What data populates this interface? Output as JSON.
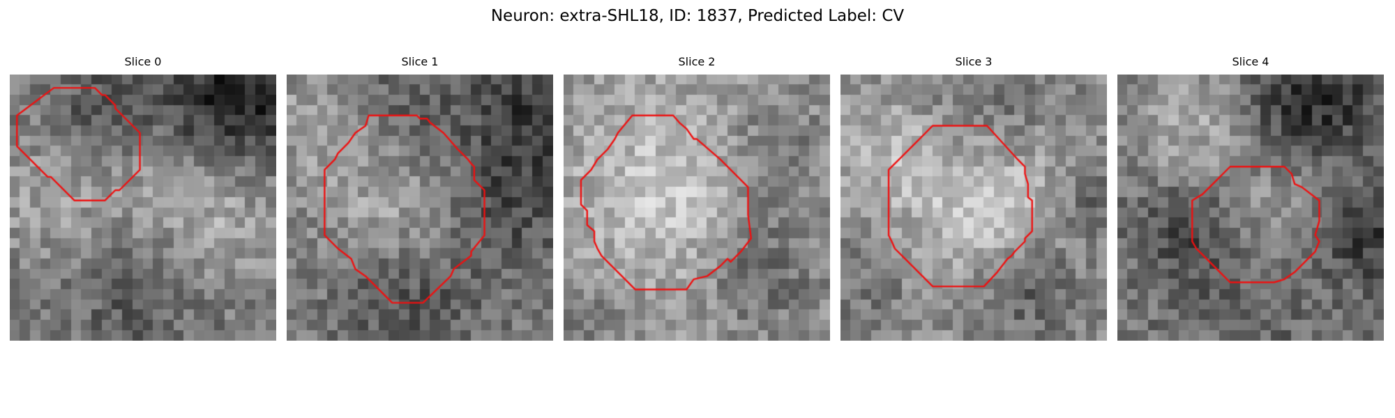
{
  "figure": {
    "title": "Neuron: extra-SHL18, ID: 1837, Predicted Label: CV"
  },
  "panels": [
    {
      "title": "Slice 0",
      "contour_color": "#ee1111",
      "contour": [
        [
          4.3,
          1.3
        ],
        [
          8.3,
          1.3
        ],
        [
          9.0,
          2.0
        ],
        [
          9.3,
          2.0
        ],
        [
          10.3,
          3.0
        ],
        [
          10.3,
          3.3
        ],
        [
          12.7,
          5.7
        ],
        [
          12.7,
          9.3
        ],
        [
          10.7,
          11.3
        ],
        [
          10.3,
          11.3
        ],
        [
          9.3,
          12.3
        ],
        [
          6.3,
          12.3
        ],
        [
          4.0,
          10.0
        ],
        [
          3.7,
          10.0
        ],
        [
          0.7,
          7.0
        ],
        [
          0.7,
          4.0
        ]
      ]
    },
    {
      "title": "Slice 1",
      "contour_color": "#ee1111",
      "contour": [
        [
          8.0,
          4.0
        ],
        [
          12.7,
          4.0
        ],
        [
          13.0,
          4.3
        ],
        [
          13.7,
          4.3
        ],
        [
          14.0,
          4.7
        ],
        [
          15.3,
          5.7
        ],
        [
          16.7,
          7.3
        ],
        [
          17.7,
          8.3
        ],
        [
          18.0,
          8.7
        ],
        [
          18.3,
          9.0
        ],
        [
          18.3,
          10.3
        ],
        [
          19.3,
          11.3
        ],
        [
          19.3,
          15.7
        ],
        [
          18.0,
          17.3
        ],
        [
          18.0,
          17.7
        ],
        [
          16.3,
          19.0
        ],
        [
          16.0,
          19.7
        ],
        [
          13.3,
          22.3
        ],
        [
          10.3,
          22.3
        ],
        [
          7.7,
          19.7
        ],
        [
          6.7,
          19.0
        ],
        [
          6.3,
          18.0
        ],
        [
          5.0,
          17.0
        ],
        [
          3.7,
          15.7
        ],
        [
          3.7,
          10.7
        ],
        [
          3.7,
          9.3
        ],
        [
          4.7,
          8.3
        ],
        [
          5.0,
          7.7
        ],
        [
          6.0,
          6.7
        ],
        [
          6.7,
          5.7
        ],
        [
          7.7,
          5.0
        ]
      ]
    },
    {
      "title": "Slice 2",
      "contour_color": "#ee1111",
      "contour": [
        [
          6.7,
          4.0
        ],
        [
          10.7,
          4.0
        ],
        [
          11.3,
          4.7
        ],
        [
          12.0,
          5.3
        ],
        [
          12.7,
          6.3
        ],
        [
          13.0,
          6.3
        ],
        [
          15.3,
          8.3
        ],
        [
          18.0,
          11.0
        ],
        [
          18.0,
          13.7
        ],
        [
          18.3,
          16.0
        ],
        [
          17.3,
          17.3
        ],
        [
          16.3,
          18.3
        ],
        [
          16.0,
          18.0
        ],
        [
          15.3,
          18.7
        ],
        [
          14.0,
          19.7
        ],
        [
          12.7,
          20.0
        ],
        [
          12.0,
          21.0
        ],
        [
          7.0,
          21.0
        ],
        [
          6.0,
          20.0
        ],
        [
          3.7,
          17.7
        ],
        [
          3.3,
          17.0
        ],
        [
          3.0,
          16.3
        ],
        [
          3.0,
          15.3
        ],
        [
          2.3,
          14.7
        ],
        [
          2.3,
          13.3
        ],
        [
          1.7,
          12.7
        ],
        [
          1.7,
          10.3
        ],
        [
          2.7,
          9.3
        ],
        [
          3.3,
          8.3
        ],
        [
          4.3,
          7.3
        ],
        [
          5.0,
          6.3
        ],
        [
          5.3,
          5.7
        ]
      ]
    },
    {
      "title": "Slice 3",
      "contour_color": "#ee1111",
      "contour": [
        [
          9.0,
          5.0
        ],
        [
          14.3,
          5.0
        ],
        [
          17.3,
          8.3
        ],
        [
          17.7,
          8.7
        ],
        [
          18.0,
          9.0
        ],
        [
          18.0,
          9.7
        ],
        [
          18.3,
          10.7
        ],
        [
          18.3,
          12.0
        ],
        [
          18.7,
          12.3
        ],
        [
          18.7,
          15.3
        ],
        [
          18.0,
          16.0
        ],
        [
          18.0,
          16.3
        ],
        [
          17.3,
          17.0
        ],
        [
          17.0,
          17.3
        ],
        [
          16.7,
          17.7
        ],
        [
          16.3,
          18.0
        ],
        [
          15.3,
          19.3
        ],
        [
          14.0,
          20.7
        ],
        [
          9.0,
          20.7
        ],
        [
          6.3,
          18.0
        ],
        [
          5.3,
          17.0
        ],
        [
          5.0,
          16.3
        ],
        [
          4.7,
          15.7
        ],
        [
          4.7,
          9.3
        ],
        [
          6.0,
          8.0
        ],
        [
          7.7,
          6.3
        ],
        [
          8.3,
          5.7
        ]
      ]
    },
    {
      "title": "Slice 4",
      "contour_color": "#ee1111",
      "contour": [
        [
          11.0,
          9.0
        ],
        [
          16.3,
          9.0
        ],
        [
          17.0,
          9.7
        ],
        [
          17.3,
          10.7
        ],
        [
          18.0,
          11.0
        ],
        [
          19.3,
          12.0
        ],
        [
          19.7,
          12.3
        ],
        [
          19.7,
          14.3
        ],
        [
          19.3,
          15.7
        ],
        [
          19.7,
          16.3
        ],
        [
          19.3,
          17.3
        ],
        [
          18.3,
          18.3
        ],
        [
          17.3,
          19.3
        ],
        [
          16.3,
          20.0
        ],
        [
          15.3,
          20.3
        ],
        [
          11.0,
          20.3
        ],
        [
          10.0,
          19.3
        ],
        [
          8.7,
          18.0
        ],
        [
          7.7,
          17.0
        ],
        [
          7.3,
          16.3
        ],
        [
          7.3,
          14.3
        ],
        [
          7.3,
          12.3
        ],
        [
          8.3,
          11.7
        ],
        [
          9.7,
          10.3
        ],
        [
          10.3,
          9.7
        ]
      ]
    }
  ]
}
